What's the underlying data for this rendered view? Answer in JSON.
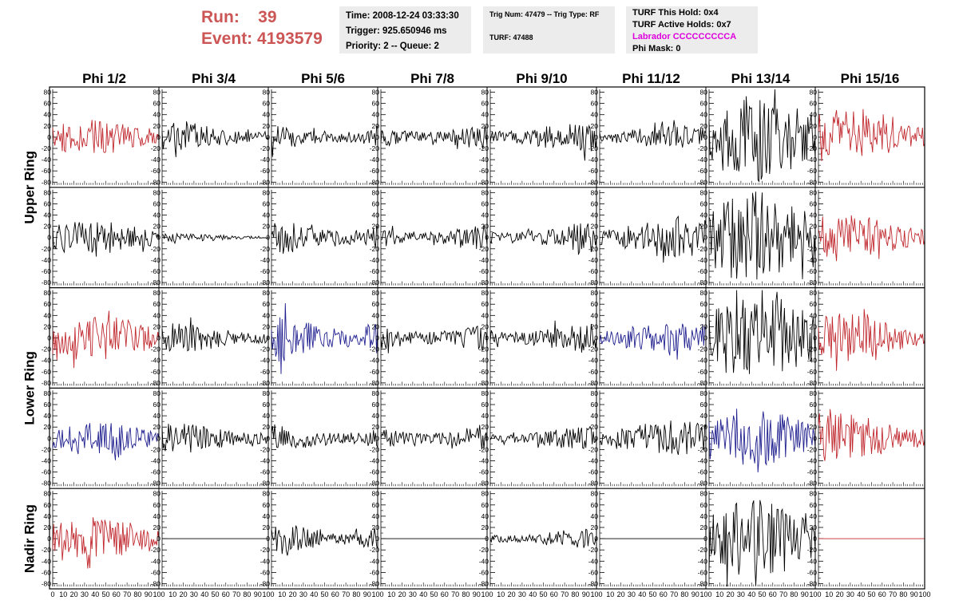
{
  "header": {
    "run_label": "Run:",
    "run_value": "39",
    "event_label": "Event:",
    "event_value": "4193579"
  },
  "info_box_1": {
    "time": "Time: 2008-12-24 03:33:30",
    "trigger": "Trigger: 925.650946 ms",
    "priority": "Priority: 2 -- Queue: 2"
  },
  "info_box_2": {
    "trig": "Trig Num: 47479 -- Trig Type: RF",
    "turf": "TURF: 47488"
  },
  "info_box_3": {
    "this_hold": "TURF This Hold: 0x4",
    "active_holds": "TURF Active Holds: 0x7",
    "labrador": "Labrador CCCCCCCCCA",
    "phi_mask": "Phi Mask: 0"
  },
  "colors": {
    "black": "#000000",
    "red": "#c0282e",
    "blue": "#1f1f8f",
    "header_red": "#cc5555",
    "magenta": "#dd00dd"
  },
  "chart_data": {
    "type": "line",
    "columns": [
      "Phi 1/2",
      "Phi 3/4",
      "Phi 5/6",
      "Phi 7/8",
      "Phi 9/10",
      "Phi 11/12",
      "Phi 13/14",
      "Phi 15/16"
    ],
    "ring_labels": [
      {
        "text": "Upper Ring",
        "rows": [
          0,
          1
        ]
      },
      {
        "text": "Lower Ring",
        "rows": [
          2,
          3
        ]
      },
      {
        "text": "Nadir Ring",
        "rows": [
          4,
          4
        ]
      }
    ],
    "ylim": [
      -85,
      85
    ],
    "yticks": [
      80,
      60,
      40,
      20,
      0,
      -20,
      -40,
      -60,
      -80
    ],
    "xlim": [
      0,
      100
    ],
    "xticks": [
      0,
      10,
      20,
      30,
      40,
      50,
      60,
      70,
      80,
      90,
      100
    ],
    "samples": 100,
    "panels": [
      [
        {
          "color": "red",
          "amp": 18
        },
        {
          "color": "black",
          "amp": 15
        },
        {
          "color": "black",
          "amp": 14
        },
        {
          "color": "black",
          "amp": 15
        },
        {
          "color": "black",
          "amp": 17
        },
        {
          "color": "black",
          "amp": 12
        },
        {
          "color": "black",
          "amp": 45
        },
        {
          "color": "red",
          "amp": 28
        }
      ],
      [
        {
          "color": "black",
          "amp": 17
        },
        {
          "color": "black",
          "amp": 4
        },
        {
          "color": "black",
          "amp": 19
        },
        {
          "color": "black",
          "amp": 15
        },
        {
          "color": "black",
          "amp": 15
        },
        {
          "color": "black",
          "amp": 20
        },
        {
          "color": "black",
          "amp": 48
        },
        {
          "color": "red",
          "amp": 25
        }
      ],
      [
        {
          "color": "red",
          "amp": 24
        },
        {
          "color": "black",
          "amp": 15
        },
        {
          "color": "blue",
          "amp": 28
        },
        {
          "color": "black",
          "amp": 17
        },
        {
          "color": "black",
          "amp": 16
        },
        {
          "color": "blue",
          "amp": 17
        },
        {
          "color": "black",
          "amp": 45
        },
        {
          "color": "red",
          "amp": 25
        }
      ],
      [
        {
          "color": "blue",
          "amp": 17
        },
        {
          "color": "black",
          "amp": 15
        },
        {
          "color": "black",
          "amp": 15
        },
        {
          "color": "black",
          "amp": 14
        },
        {
          "color": "black",
          "amp": 12
        },
        {
          "color": "black",
          "amp": 18
        },
        {
          "color": "blue",
          "amp": 28
        },
        {
          "color": "red",
          "amp": 25
        }
      ],
      [
        {
          "color": "red",
          "amp": 22
        },
        {
          "color": "black",
          "amp": 0
        },
        {
          "color": "black",
          "amp": 18
        },
        {
          "color": "black",
          "amp": 0
        },
        {
          "color": "black",
          "amp": 10
        },
        {
          "color": "black",
          "amp": 0
        },
        {
          "color": "black",
          "amp": 40
        },
        {
          "color": "red",
          "amp": 0
        }
      ]
    ]
  }
}
